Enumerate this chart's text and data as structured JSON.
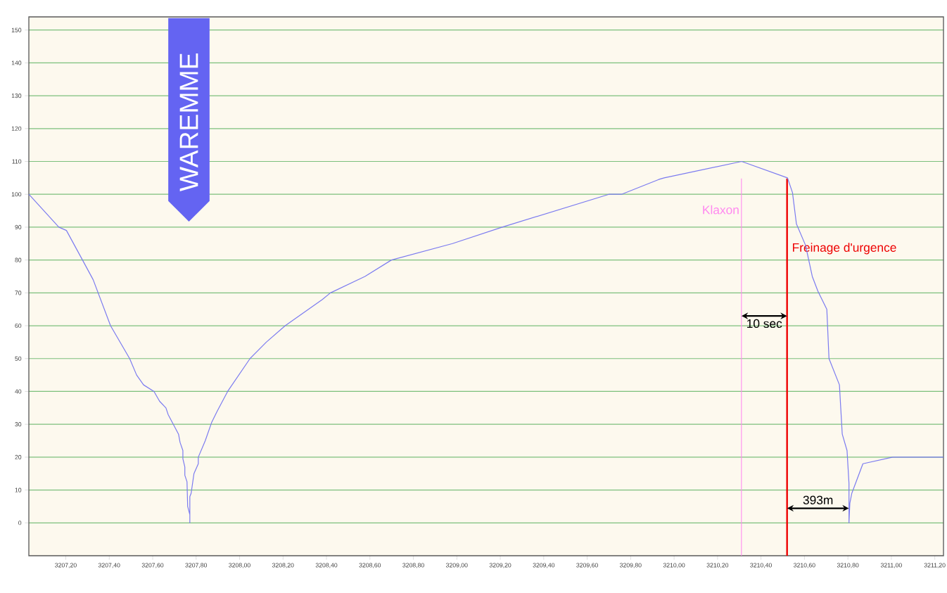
{
  "chart_data": {
    "type": "line",
    "series": [
      {
        "color": "#7b7bf0",
        "x": [
          3207.03,
          3207.168,
          3207.203,
          3207.277,
          3207.326,
          3207.406,
          3207.494,
          3207.526,
          3207.558,
          3207.606,
          3207.632,
          3207.661,
          3207.671,
          3207.719,
          3207.726,
          3207.739,
          3207.739,
          3207.748,
          3207.748,
          3207.758,
          3207.761,
          3207.771,
          3207.771,
          3207.771,
          3207.777,
          3207.79,
          3207.81,
          3207.81,
          3207.842,
          3207.871,
          3207.897,
          3207.945,
          3208.048,
          3208.123,
          3208.21,
          3208.381,
          3208.418,
          3208.577,
          3208.699,
          3208.98,
          3209.209,
          3209.7,
          3209.758,
          3209.929,
          3209.954,
          3210.311,
          3210.522,
          3210.545,
          3210.563,
          3210.605,
          3210.636,
          3210.662,
          3210.703,
          3210.713,
          3210.761,
          3210.767,
          3210.774,
          3210.796,
          3210.805,
          3210.805,
          3210.809,
          3210.818,
          3210.869,
          3211.006,
          3211.24
        ],
        "values": [
          100,
          90,
          89,
          80,
          74,
          60,
          50,
          45,
          42,
          40,
          37,
          35,
          33,
          27,
          24.5,
          22,
          19.5,
          17,
          14.5,
          12.5,
          5,
          2.5,
          0,
          8,
          9,
          15,
          18,
          20,
          25,
          30.5,
          34,
          40,
          50,
          55,
          60,
          68,
          70,
          75,
          80,
          85,
          90,
          100,
          100,
          104.5,
          105,
          110,
          105,
          100.5,
          91,
          84.5,
          75,
          70.5,
          65,
          50,
          42,
          35,
          27,
          22,
          12,
          0,
          6,
          9,
          18,
          20,
          20
        ]
      }
    ],
    "xlim": [
      3207.03,
      3211.24
    ],
    "ylim": [
      -10,
      154
    ],
    "xticks": [
      {
        "value": 3207.2,
        "label": "3207,20"
      },
      {
        "value": 3207.4,
        "label": "3207,40"
      },
      {
        "value": 3207.6,
        "label": "3207,60"
      },
      {
        "value": 3207.8,
        "label": "3207,80"
      },
      {
        "value": 3208.0,
        "label": "3208,00"
      },
      {
        "value": 3208.2,
        "label": "3208,20"
      },
      {
        "value": 3208.4,
        "label": "3208,40"
      },
      {
        "value": 3208.6,
        "label": "3208,60"
      },
      {
        "value": 3208.8,
        "label": "3208,80"
      },
      {
        "value": 3209.0,
        "label": "3209,00"
      },
      {
        "value": 3209.2,
        "label": "3209,20"
      },
      {
        "value": 3209.4,
        "label": "3209,40"
      },
      {
        "value": 3209.6,
        "label": "3209,60"
      },
      {
        "value": 3209.8,
        "label": "3209,80"
      },
      {
        "value": 3210.0,
        "label": "3210,00"
      },
      {
        "value": 3210.2,
        "label": "3210,20"
      },
      {
        "value": 3210.4,
        "label": "3210,40"
      },
      {
        "value": 3210.6,
        "label": "3210,60"
      },
      {
        "value": 3210.8,
        "label": "3210,80"
      },
      {
        "value": 3211.0,
        "label": "3211,00"
      },
      {
        "value": 3211.2,
        "label": "3211,20"
      }
    ],
    "yticks": [
      0,
      10,
      20,
      30,
      40,
      50,
      60,
      70,
      80,
      90,
      100,
      110,
      120,
      130,
      140,
      150
    ],
    "grid": "y",
    "ref_lines": [
      {
        "axis": "x",
        "value": 3210.31,
        "label": "Klaxon",
        "color": "#ff88f0"
      },
      {
        "axis": "x",
        "value": 3210.52,
        "label": "Freinage d'urgence",
        "color": "#ee0000"
      }
    ],
    "annotations": [
      "WAREMME",
      "10 sec",
      "393m"
    ]
  }
}
